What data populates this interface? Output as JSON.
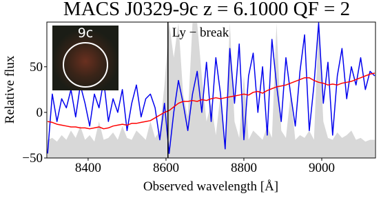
{
  "chart_data": {
    "type": "line",
    "title": "MACS J0329-9c z = 6.1000 QF = 2",
    "xlabel": "Observed wavelength  [Å]",
    "ylabel": "Relative flux",
    "annotation": "Ly − break",
    "vline": 8605,
    "inset_label": "9c",
    "x": [
      8296,
      8308,
      8320,
      8332,
      8344,
      8356,
      8368,
      8380,
      8392,
      8404,
      8416,
      8428,
      8440,
      8452,
      8464,
      8476,
      8488,
      8500,
      8512,
      8524,
      8536,
      8548,
      8560,
      8572,
      8584,
      8596,
      8608,
      8620,
      8632,
      8644,
      8656,
      8668,
      8680,
      8692,
      8704,
      8716,
      8728,
      8740,
      8752,
      8764,
      8776,
      8788,
      8800,
      8812,
      8824,
      8836,
      8848,
      8860,
      8872,
      8884,
      8896,
      8908,
      8920,
      8932,
      8944,
      8956,
      8968,
      8980,
      8992,
      9004,
      9016,
      9028,
      9040,
      9052,
      9064,
      9076,
      9088,
      9100,
      9112,
      9124,
      9136
    ],
    "series": [
      {
        "color": "#d8d8d8",
        "fill": true,
        "values": [
          -30,
          -28,
          -32,
          -25,
          -30,
          -20,
          -28,
          -15,
          -30,
          -25,
          -32,
          -10,
          -30,
          -28,
          -22,
          -30,
          -15,
          -28,
          -30,
          -20,
          -25,
          -30,
          -10,
          -28,
          -20,
          30,
          98,
          60,
          98,
          20,
          -5,
          98,
          98,
          40,
          -10,
          10,
          -25,
          20,
          -30,
          98,
          -10,
          -28,
          40,
          -30,
          -20,
          -25,
          -30,
          -15,
          -28,
          98,
          -20,
          -28,
          20,
          -30,
          -25,
          -28,
          -20,
          -30,
          98,
          -10,
          -28,
          -30,
          -22,
          -28,
          -25,
          -20,
          -30,
          -28,
          -32,
          -30,
          -30
        ]
      },
      {
        "color": "#0000ee",
        "values": [
          -45,
          20,
          -10,
          15,
          5,
          25,
          -5,
          30,
          10,
          -15,
          20,
          5,
          35,
          -10,
          15,
          0,
          25,
          -20,
          10,
          30,
          -5,
          15,
          20,
          5,
          -30,
          10,
          -45,
          0,
          35,
          10,
          -20,
          20,
          45,
          0,
          55,
          -10,
          60,
          20,
          -40,
          70,
          10,
          75,
          -30,
          40,
          65,
          0,
          50,
          -25,
          80,
          30,
          -10,
          60,
          20,
          -15,
          45,
          85,
          -20,
          30,
          98,
          10,
          55,
          -25,
          40,
          70,
          15,
          50,
          30,
          60,
          25,
          45,
          40
        ]
      },
      {
        "color": "#ff0000",
        "values": [
          -10,
          -11,
          -13,
          -14,
          -15,
          -16,
          -16,
          -17,
          -17,
          -18,
          -17,
          -16,
          -18,
          -17,
          -15,
          -14,
          -13,
          -14,
          -12,
          -12,
          -11,
          -10,
          -9,
          -6,
          -3,
          0,
          2,
          6,
          10,
          12,
          12,
          13,
          12,
          14,
          13,
          15,
          16,
          15,
          16,
          17,
          18,
          19,
          20,
          19,
          22,
          23,
          21,
          24,
          26,
          28,
          29,
          30,
          32,
          34,
          36,
          38,
          38,
          35,
          33,
          32,
          30,
          31,
          30,
          32,
          33,
          34,
          36,
          38,
          40,
          42,
          43
        ]
      }
    ],
    "xlim": [
      8294,
      9138
    ],
    "ylim": [
      -50,
      99
    ],
    "xticks": [
      8400,
      8600,
      8800,
      9000
    ],
    "yticks": [
      {
        "value": -50,
        "label": "−50"
      },
      0,
      50
    ]
  }
}
